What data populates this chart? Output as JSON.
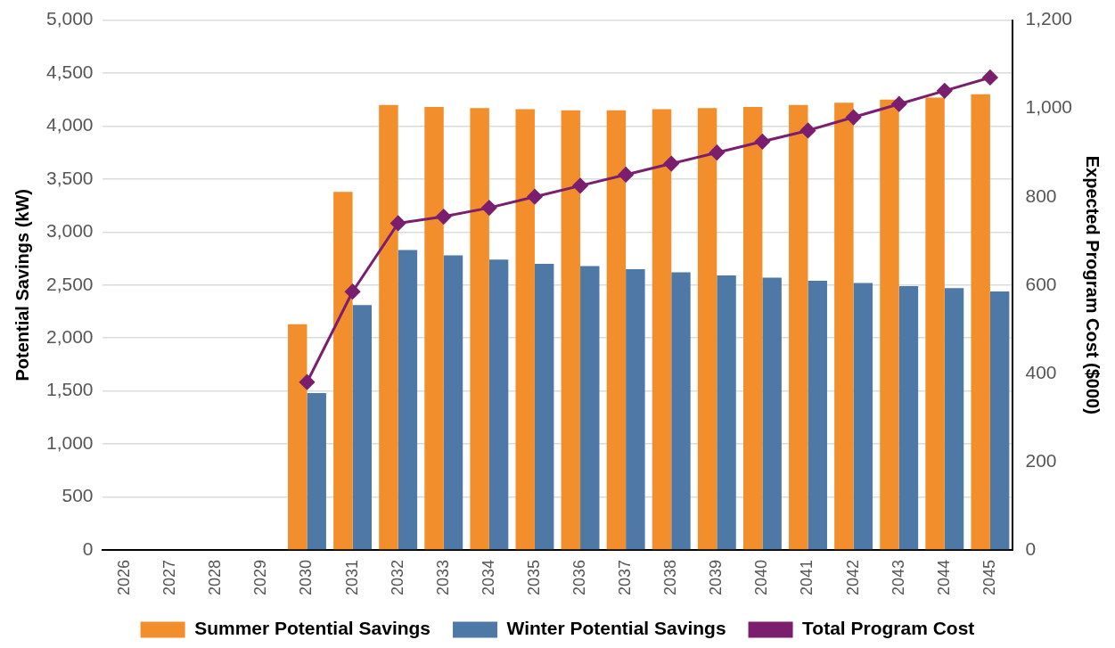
{
  "chart_data": {
    "type": "bar",
    "categories": [
      "2026",
      "2027",
      "2028",
      "2029",
      "2030",
      "2031",
      "2032",
      "2033",
      "2034",
      "2035",
      "2036",
      "2037",
      "2038",
      "2039",
      "2040",
      "2041",
      "2042",
      "2043",
      "2044",
      "2045"
    ],
    "series": [
      {
        "name": "Summer Potential Savings",
        "color": "#f28e2b",
        "values": [
          0,
          0,
          0,
          0,
          2130,
          3380,
          4200,
          4180,
          4170,
          4160,
          4150,
          4150,
          4160,
          4170,
          4180,
          4200,
          4220,
          4250,
          4270,
          4300
        ]
      },
      {
        "name": "Winter Potential Savings",
        "color": "#4e79a7",
        "values": [
          0,
          0,
          0,
          0,
          1480,
          2310,
          2830,
          2780,
          2740,
          2700,
          2680,
          2650,
          2620,
          2590,
          2570,
          2540,
          2520,
          2490,
          2470,
          2440
        ]
      },
      {
        "name": "Total Program Cost",
        "type": "line",
        "axis": "y2",
        "color": "#7b1e6e",
        "marker": "diamond",
        "values": [
          null,
          null,
          null,
          null,
          380,
          585,
          740,
          755,
          775,
          800,
          825,
          850,
          875,
          900,
          925,
          950,
          980,
          1010,
          1040,
          1070
        ]
      }
    ],
    "ylabel": "Potential Savings (kW)",
    "y2label": "Expected Program Cost ($000)",
    "ylim": [
      0,
      5000
    ],
    "yticks": [
      0,
      500,
      {
        "value": 1000,
        "label": "1,000"
      },
      {
        "value": 1500,
        "label": "1,500"
      },
      {
        "value": 2000,
        "label": "2,000"
      },
      {
        "value": 2500,
        "label": "2,500"
      },
      {
        "value": 3000,
        "label": "3,000"
      },
      {
        "value": 3500,
        "label": "3,500"
      },
      {
        "value": 4000,
        "label": "4,000"
      },
      {
        "value": 4500,
        "label": "4,500"
      },
      {
        "value": 5000,
        "label": "5,000"
      }
    ],
    "y2lim": [
      0,
      1200
    ],
    "y2ticks": [
      0,
      200,
      400,
      600,
      800,
      {
        "value": 1000,
        "label": "1,000"
      },
      {
        "value": 1200,
        "label": "1,200"
      }
    ],
    "grid": "y",
    "legend": "bottom"
  }
}
